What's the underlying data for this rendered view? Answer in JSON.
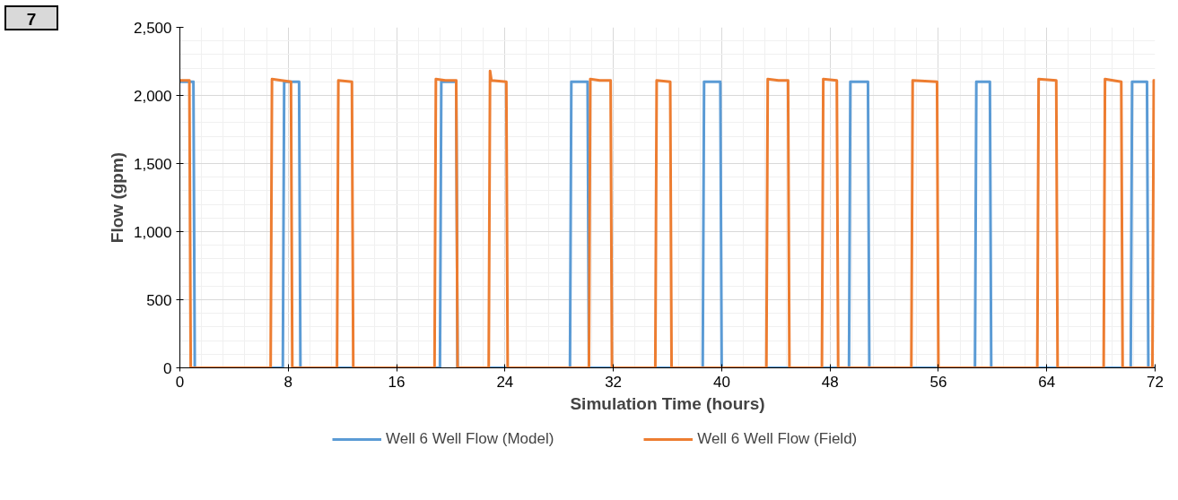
{
  "chart_data": {
    "type": "line",
    "xlabel": "Simulation Time (hours)",
    "ylabel": "Flow (gpm)",
    "annotations": [
      "7"
    ],
    "xlim": [
      0,
      72
    ],
    "xticks": [
      0,
      8,
      16,
      24,
      32,
      40,
      48,
      56,
      64,
      72
    ],
    "ylim": [
      0,
      2500
    ],
    "yticks": [
      0,
      500,
      {
        "value": 1000,
        "label": "1,000"
      },
      {
        "value": 1500,
        "label": "1,500"
      },
      {
        "value": 2000,
        "label": "2,000"
      },
      {
        "value": 2500,
        "label": "2,500"
      }
    ],
    "grid": true,
    "legend": "bottom",
    "line_style": "solid",
    "series": [
      {
        "name": "Well 6 Well Flow (Model)",
        "color": "#5b9bd5",
        "x": [
          0,
          1.0,
          1.1,
          7.6,
          7.7,
          8.8,
          8.9,
          19.2,
          19.3,
          20.4,
          20.5,
          28.8,
          28.9,
          30.1,
          30.2,
          38.6,
          38.7,
          39.9,
          40.0,
          49.4,
          49.5,
          50.8,
          50.9,
          58.7,
          58.8,
          59.8,
          59.9,
          70.2,
          70.3,
          71.4,
          71.5,
          72
        ],
        "values": [
          2100,
          2100,
          0,
          0,
          2100,
          2100,
          0,
          0,
          2100,
          2100,
          0,
          0,
          2100,
          2100,
          0,
          0,
          2100,
          2100,
          0,
          0,
          2100,
          2100,
          0,
          0,
          2100,
          2100,
          0,
          0,
          2100,
          2100,
          0,
          0
        ]
      },
      {
        "name": "Well 6 Well Flow (Field)",
        "color": "#ed7d31",
        "x": [
          0,
          0.7,
          0.8,
          6.7,
          6.8,
          7.5,
          8.2,
          8.3,
          11.6,
          11.7,
          12.7,
          12.8,
          18.8,
          18.9,
          19.6,
          20.4,
          20.5,
          22.8,
          22.9,
          23.0,
          24.1,
          24.2,
          30.2,
          30.3,
          31.0,
          31.8,
          31.9,
          35.1,
          35.2,
          36.2,
          36.3,
          43.3,
          43.4,
          44.2,
          44.9,
          45.0,
          47.4,
          47.5,
          48.5,
          48.6,
          54.0,
          54.1,
          55.9,
          56.0,
          63.3,
          63.4,
          64.7,
          64.8,
          68.2,
          68.3,
          69.5,
          69.6,
          71.8,
          71.9,
          72
        ],
        "values": [
          2110,
          2110,
          0,
          0,
          2120,
          2110,
          2100,
          0,
          0,
          2110,
          2100,
          0,
          0,
          2120,
          2110,
          2110,
          0,
          0,
          2180,
          2110,
          2100,
          0,
          0,
          2120,
          2110,
          2110,
          0,
          0,
          2110,
          2100,
          0,
          0,
          2120,
          2110,
          2110,
          0,
          0,
          2120,
          2110,
          0,
          0,
          2110,
          2100,
          0,
          0,
          2120,
          2110,
          0,
          0,
          2120,
          2100,
          0,
          0,
          2110,
          2110
        ]
      }
    ]
  }
}
